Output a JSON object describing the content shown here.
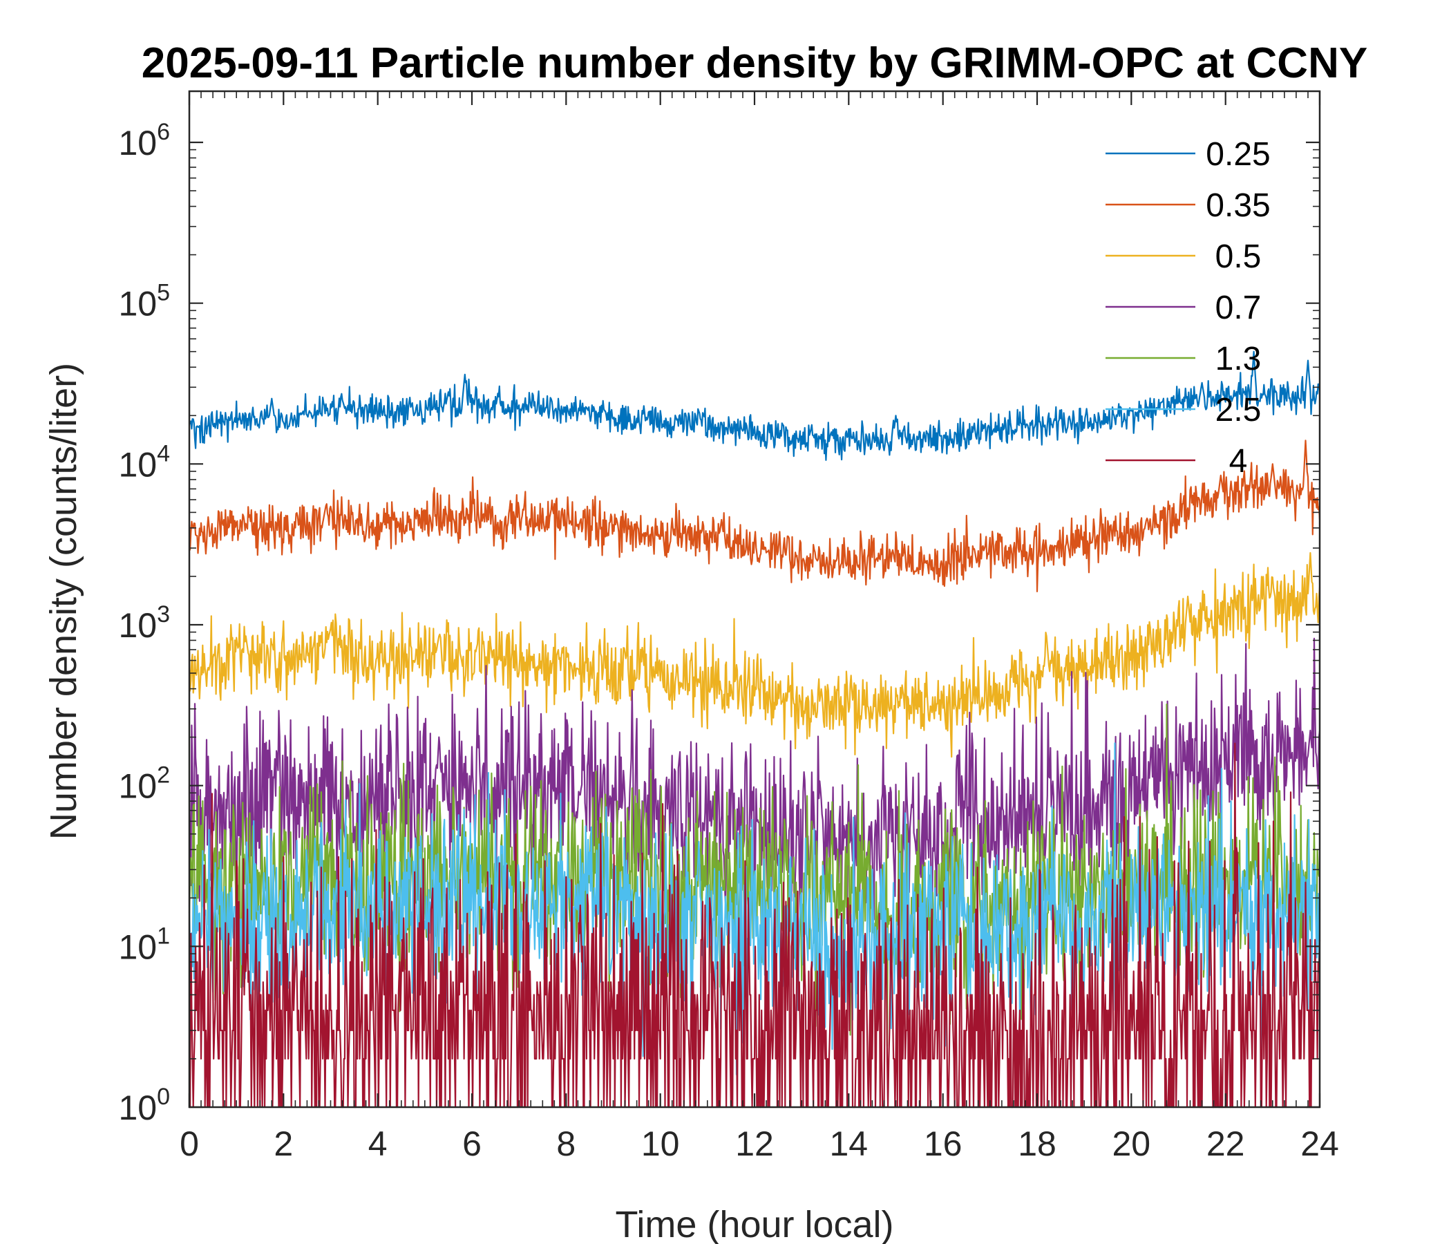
{
  "chart_data": {
    "type": "line",
    "title": "2025-09-11 Particle number density by GRIMM-OPC at CCNY",
    "xlabel": "Time (hour local)",
    "ylabel": "Number density (counts/liter)",
    "xlim": [
      0,
      24
    ],
    "ylim": [
      1,
      2000000
    ],
    "yscale": "log",
    "x_ticks": [
      0,
      2,
      4,
      6,
      8,
      10,
      12,
      14,
      16,
      18,
      20,
      22,
      24
    ],
    "x_tick_labels": [
      "0",
      "2",
      "4",
      "6",
      "8",
      "10",
      "12",
      "14",
      "16",
      "18",
      "20",
      "22",
      "24"
    ],
    "y_ticks": [
      1,
      10,
      100,
      1000,
      10000,
      100000,
      1000000
    ],
    "y_tick_labels": [
      {
        "base": "10",
        "exp": "0"
      },
      {
        "base": "10",
        "exp": "1"
      },
      {
        "base": "10",
        "exp": "2"
      },
      {
        "base": "10",
        "exp": "3"
      },
      {
        "base": "10",
        "exp": "4"
      },
      {
        "base": "10",
        "exp": "5"
      },
      {
        "base": "10",
        "exp": "6"
      }
    ],
    "legend_position": "top-right",
    "x": [
      0,
      1,
      2,
      3,
      4,
      5,
      6,
      7,
      8,
      9,
      10,
      11,
      12,
      13,
      14,
      15,
      16,
      17,
      18,
      19,
      20,
      21,
      22,
      23,
      24
    ],
    "series": [
      {
        "name": "0.25",
        "color": "#0072BD",
        "noise": 0.05,
        "values": [
          16500,
          19500,
          19000,
          22000,
          21000,
          22000,
          24000,
          22500,
          22000,
          19500,
          18500,
          17500,
          16000,
          14000,
          14500,
          14500,
          14500,
          16000,
          17500,
          18500,
          20000,
          24000,
          26000,
          27000,
          26000
        ],
        "spikes": [
          [
            1.75,
            25500
          ],
          [
            3.25,
            25000
          ],
          [
            5.5,
            28000
          ],
          [
            5.85,
            36000
          ],
          [
            8.8,
            22000
          ],
          [
            13.2,
            16500
          ],
          [
            15.0,
            20000
          ],
          [
            21.5,
            32000
          ],
          [
            22.6,
            50000
          ],
          [
            23.75,
            44000
          ]
        ]
      },
      {
        "name": "0.35",
        "color": "#D95319",
        "noise": 0.075,
        "values": [
          3700,
          4000,
          4000,
          4500,
          4200,
          4600,
          4700,
          4500,
          4500,
          4000,
          3600,
          3500,
          3000,
          2600,
          2500,
          2600,
          2500,
          2800,
          2900,
          3400,
          3800,
          5000,
          6500,
          7000,
          6000
        ],
        "spikes": [
          [
            2.9,
            5500
          ],
          [
            7.7,
            5500
          ],
          [
            11.3,
            4500
          ],
          [
            21.9,
            8500
          ],
          [
            23.0,
            10000
          ],
          [
            23.7,
            14000
          ]
        ]
      },
      {
        "name": "0.5",
        "color": "#EDB120",
        "noise": 0.11,
        "values": [
          550,
          650,
          600,
          800,
          600,
          680,
          650,
          580,
          560,
          500,
          500,
          460,
          400,
          320,
          300,
          310,
          320,
          360,
          500,
          550,
          620,
          900,
          1200,
          1450,
          1300
        ],
        "spikes": [
          [
            1.2,
            850
          ],
          [
            3.0,
            950
          ],
          [
            5.3,
            850
          ],
          [
            18.2,
            850
          ],
          [
            21.2,
            1500
          ],
          [
            23.0,
            1800
          ],
          [
            23.8,
            2800
          ]
        ]
      },
      {
        "name": "0.7",
        "color": "#7E2F8E",
        "noise": 0.26,
        "values": [
          68,
          75,
          78,
          80,
          82,
          88,
          95,
          90,
          85,
          78,
          72,
          62,
          55,
          48,
          46,
          50,
          55,
          58,
          68,
          80,
          100,
          130,
          150,
          150,
          140
        ],
        "spikes": [
          [
            5.3,
            200
          ],
          [
            23.8,
            220
          ]
        ]
      },
      {
        "name": "1.3",
        "color": "#77AC30",
        "noise": 0.28,
        "values": [
          22,
          24,
          25,
          28,
          27,
          30,
          32,
          30,
          29,
          27,
          25,
          24,
          22,
          19,
          18,
          18,
          18,
          19,
          20,
          21,
          23,
          25,
          26,
          27,
          26
        ],
        "spikes": []
      },
      {
        "name": "2.5",
        "color": "#4DBEEE",
        "noise": 0.28,
        "values": [
          13,
          15,
          15,
          17,
          16,
          17,
          19,
          18,
          18,
          17,
          16,
          15,
          14,
          12,
          11,
          11,
          12,
          12,
          13,
          14,
          15,
          16,
          17,
          17,
          17
        ],
        "spikes": []
      },
      {
        "name": "4",
        "color": "#A2142F",
        "noise": 0.45,
        "values": [
          3.2,
          3.5,
          3.5,
          3.8,
          3.8,
          4.0,
          4.2,
          4.0,
          4.0,
          3.8,
          3.6,
          3.5,
          3.3,
          3.2,
          3.1,
          3.1,
          3.2,
          3.2,
          3.3,
          3.4,
          3.6,
          3.8,
          3.9,
          4.0,
          4.0
        ],
        "spikes": [
          [
            8.3,
            18
          ]
        ]
      }
    ]
  }
}
